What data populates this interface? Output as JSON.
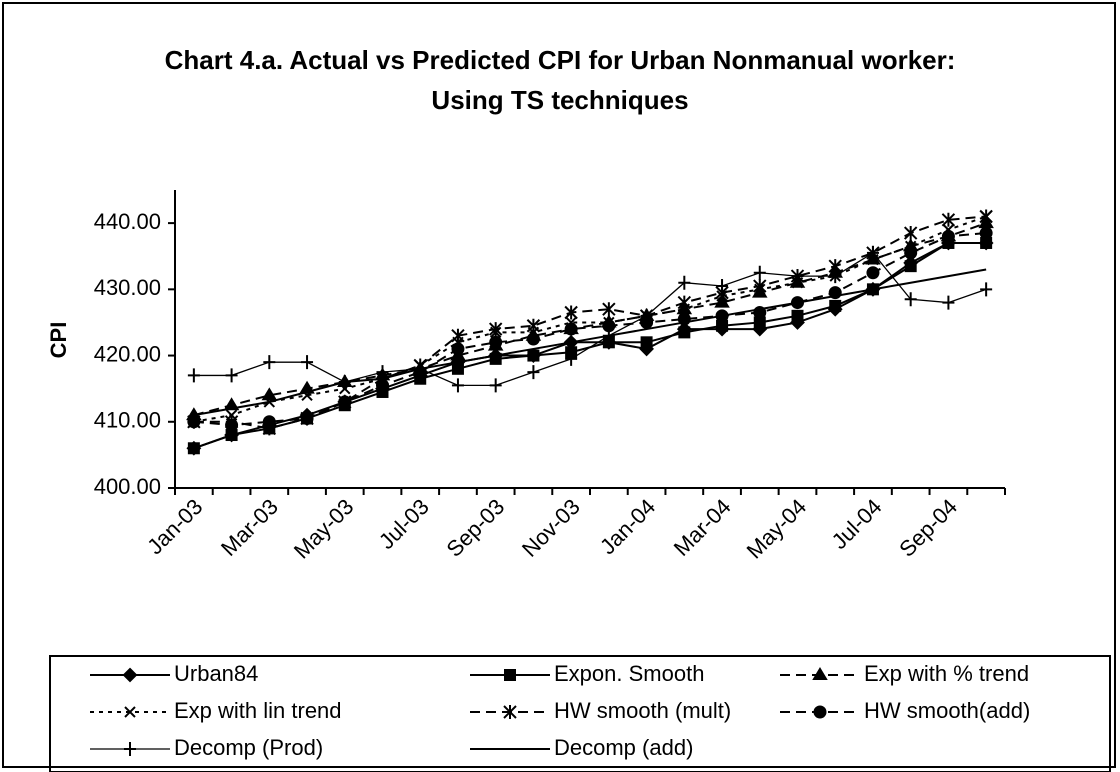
{
  "chart_data": {
    "type": "line",
    "title": "Chart 4.a. Actual vs Predicted CPI for Urban Nonmanual worker: Using TS techniques",
    "y_label": "CPI",
    "categories": [
      "Jan-03",
      null,
      "Mar-03",
      null,
      "May-03",
      null,
      "Jul-03",
      null,
      "Sep-03",
      null,
      "Nov-03",
      null,
      "Jan-04",
      null,
      "Mar-04",
      null,
      "May-04",
      null,
      "Jul-04",
      null,
      "Sep-04",
      null
    ],
    "ylim": [
      400,
      445
    ],
    "yticks": [
      {
        "value": 400,
        "label": "400.00"
      },
      {
        "value": 410,
        "label": "410.00"
      },
      {
        "value": 420,
        "label": "420.00"
      },
      {
        "value": 430,
        "label": "430.00"
      },
      {
        "value": 440,
        "label": "440.00"
      }
    ],
    "series": [
      {
        "name": "Urban84",
        "color": "#000000",
        "style": "solid",
        "marker": "diamond",
        "values": [
          406,
          408,
          409.5,
          411,
          413,
          415,
          417,
          419,
          420,
          420,
          422,
          422,
          421,
          424,
          424,
          424,
          425,
          427,
          430,
          434,
          437,
          437
        ]
      },
      {
        "name": "Expon. Smooth",
        "color": "#000000",
        "style": "solid",
        "marker": "square",
        "values": [
          406,
          408,
          409,
          410.5,
          412.5,
          414.5,
          416.5,
          418,
          419.5,
          420,
          420.5,
          422,
          422,
          423.5,
          424.5,
          425,
          426,
          427.5,
          430,
          433.5,
          437,
          437
        ]
      },
      {
        "name": "Exp with % trend",
        "color": "#000000",
        "style": "dashed",
        "marker": "triangle",
        "values": [
          411,
          412.5,
          414,
          415,
          416,
          417,
          418,
          420,
          421.5,
          423,
          424,
          425,
          426,
          427,
          428,
          429.5,
          431,
          432.5,
          434.5,
          436.5,
          438,
          440
        ]
      },
      {
        "name": "Exp with lin trend",
        "color": "#000000",
        "style": "dotted",
        "marker": "x",
        "values": [
          410,
          411,
          413,
          414,
          415,
          416.5,
          418.5,
          422,
          423.5,
          423.5,
          425,
          425,
          426,
          427,
          429,
          430,
          431,
          432,
          434.5,
          436.5,
          439,
          441
        ]
      },
      {
        "name": "HW smooth (mult)",
        "color": "#000000",
        "style": "dashed",
        "marker": "star",
        "values": [
          410,
          410,
          409,
          410.5,
          413,
          416.5,
          418.5,
          423,
          424,
          424.5,
          426.5,
          427,
          426,
          428,
          429.5,
          430.5,
          432,
          433.5,
          435.5,
          438.5,
          440.5,
          441
        ]
      },
      {
        "name": "HW smooth(add)",
        "color": "#000000",
        "style": "dashed",
        "marker": "circle",
        "values": [
          410,
          409.5,
          410,
          410.5,
          413,
          415.5,
          417.5,
          421,
          422,
          422.5,
          424,
          424.5,
          425,
          425.5,
          426,
          426.5,
          428,
          429.5,
          432.5,
          435.5,
          438,
          438.5
        ]
      },
      {
        "name": "Decomp (Prod)",
        "color": "#000000",
        "style": "thin",
        "marker": "plus",
        "values": [
          417,
          417,
          419,
          419,
          416,
          417.5,
          418,
          415.5,
          415.5,
          417.5,
          419.5,
          423,
          426,
          431,
          430.5,
          432.5,
          432,
          432,
          435.5,
          428.5,
          428,
          430
        ]
      },
      {
        "name": "Decomp (add)",
        "color": "#000000",
        "style": "solid",
        "marker": "none",
        "values": [
          411,
          412,
          413,
          414.5,
          416,
          416.5,
          418,
          419,
          420,
          421,
          422,
          423,
          424,
          425,
          426,
          427,
          428,
          429,
          430,
          431,
          432,
          433
        ]
      }
    ]
  }
}
